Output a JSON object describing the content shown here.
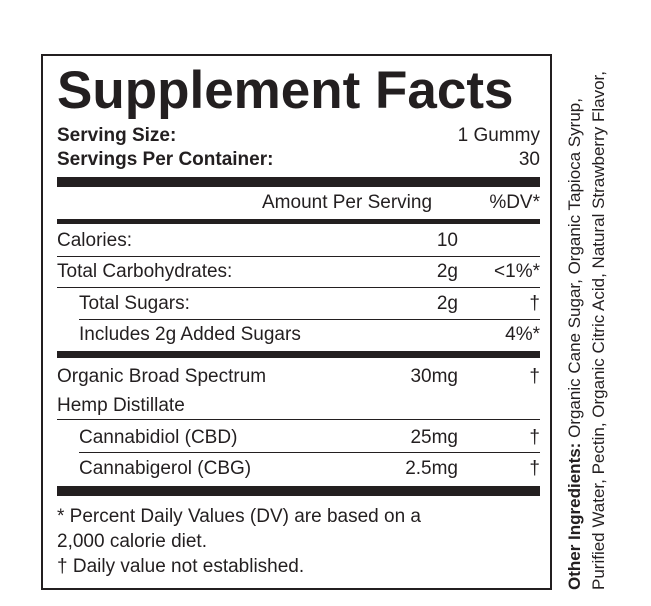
{
  "title": "Supplement Facts",
  "serving": {
    "size_label": "Serving Size:",
    "size_value": "1 Gummy",
    "per_container_label": "Servings Per Container:",
    "per_container_value": "30"
  },
  "header": {
    "amount": "Amount Per Serving",
    "dv": "%DV*"
  },
  "rows": [
    {
      "label": "Calories:",
      "amount": "10",
      "dv": ""
    },
    {
      "label": "Total Carbohydrates:",
      "amount": "2g",
      "dv": "<1%*"
    },
    {
      "label": "Total Sugars:",
      "amount": "2g",
      "dv": "†"
    },
    {
      "label": "Includes 2g Added Sugars",
      "amount": "",
      "dv": "4%*"
    }
  ],
  "hemp": {
    "label_line1": "Organic Broad Spectrum",
    "label_line2": "Hemp Distillate",
    "amount": "30mg",
    "dv": "†"
  },
  "cannabinoids": [
    {
      "label": "Cannabidiol (CBD)",
      "amount": "25mg",
      "dv": "†"
    },
    {
      "label": "Cannabigerol (CBG)",
      "amount": "2.5mg",
      "dv": "†"
    }
  ],
  "footnotes": {
    "line1": "* Percent Daily Values (DV) are based on a",
    "line2": "2,000 calorie diet.",
    "line3": "† Daily value not established."
  },
  "ingredients": {
    "label": "Other Ingredients:",
    "text": "Organic Cane Sugar, Organic Tapioca Syrup, Purified Water, Pectin, Organic Citric Acid, Natural Strawberry Flavor,"
  }
}
